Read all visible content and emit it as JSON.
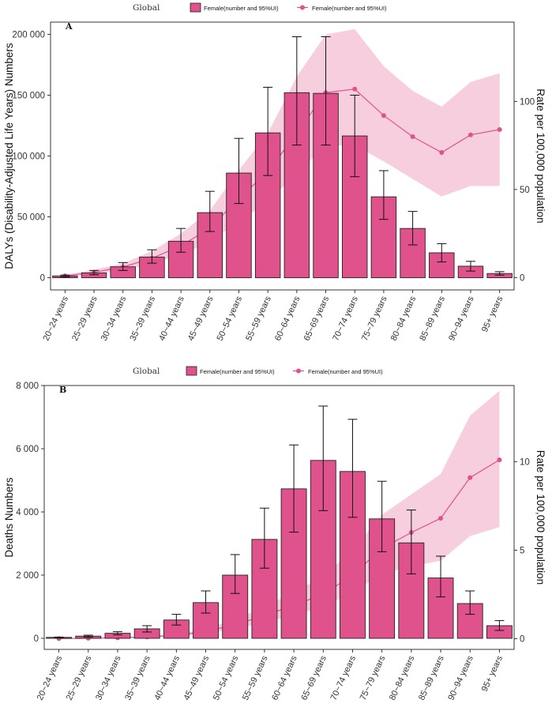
{
  "chart_data": [
    {
      "type": "bar",
      "panel_label": "A",
      "region_label": "Global",
      "legend": {
        "bar": "Female(number and 95%UI)",
        "line": "Female(number and 95%UI)"
      },
      "ylabel": "DALYs (Disability-Adjusted Life Years) Numbers",
      "y2label": "Rate per 100,000 population",
      "ylim": [
        -10000,
        210000
      ],
      "yticks": [
        0,
        50000,
        100000,
        150000,
        200000
      ],
      "ytick_labels": [
        "0",
        "50 000",
        "100 000",
        "150 000",
        "200 000"
      ],
      "y2lim": [
        -7,
        145
      ],
      "y2ticks": [
        0,
        50,
        100
      ],
      "y2tick_labels": [
        "0",
        "50",
        "100"
      ],
      "categories": [
        "20~24 years",
        "25~29 years",
        "30~34 years",
        "35~39 years",
        "40~44 years",
        "45~49 years",
        "50~54 years",
        "55~59 years",
        "60~64 years",
        "65~69 years",
        "70~74 years",
        "75~79 years",
        "80~84 years",
        "85~89 years",
        "90~94 years",
        "95+ years"
      ],
      "values": [
        1500,
        4000,
        9000,
        17000,
        30000,
        53500,
        86000,
        119000,
        152000,
        151500,
        116500,
        66500,
        40500,
        20500,
        9500,
        3500
      ],
      "lower": [
        800,
        2500,
        6000,
        12000,
        21000,
        38000,
        61000,
        84000,
        109000,
        109000,
        83000,
        48000,
        27000,
        13000,
        5500,
        2200
      ],
      "upper": [
        2200,
        6000,
        12500,
        23000,
        40500,
        71000,
        114500,
        156500,
        198000,
        198000,
        150000,
        88000,
        54500,
        28000,
        13500,
        5000
      ],
      "rate": [
        1,
        3,
        6,
        11,
        18,
        28,
        45,
        60,
        82,
        105,
        107,
        92,
        80,
        71,
        81,
        84
      ],
      "rate_lower": [
        0.6,
        2,
        4,
        8,
        13,
        20,
        32,
        43,
        59,
        75,
        75,
        66,
        56,
        46,
        52,
        52
      ],
      "rate_upper": [
        1.5,
        4.5,
        8,
        15,
        25,
        38,
        61,
        82,
        114,
        138,
        141,
        120,
        106,
        97,
        111,
        116
      ],
      "colors": {
        "bar": "#E0528C",
        "line": "#E0528C",
        "band": "#F4C6D8"
      }
    },
    {
      "type": "bar",
      "panel_label": "B",
      "region_label": "Global",
      "legend": {
        "bar": "Female(number and 95%UI)",
        "line": "Female(number and 95%UI)"
      },
      "ylabel": "Deaths Numbers",
      "y2label": "Rate per 100,000 population",
      "ylim": [
        -350,
        8000
      ],
      "yticks": [
        0,
        2000,
        4000,
        6000,
        8000
      ],
      "ytick_labels": [
        "0",
        "2 000",
        "4 000",
        "6 000",
        "8 000"
      ],
      "y2lim": [
        -0.6,
        14.3
      ],
      "y2ticks": [
        0,
        5,
        10
      ],
      "y2tick_labels": [
        "0",
        "5",
        "10"
      ],
      "categories": [
        "20~24 years",
        "25~29 years",
        "30~34 years",
        "35~39 years",
        "40~44 years",
        "45~49 years",
        "50~54 years",
        "55~59 years",
        "60~64 years",
        "65~69 years",
        "70~74 years",
        "75~79 years",
        "80~84 years",
        "85~89 years",
        "90~94 years",
        "95+ years"
      ],
      "values": [
        30,
        70,
        160,
        300,
        580,
        1130,
        2000,
        3130,
        4730,
        5630,
        5280,
        3780,
        3020,
        1910,
        1100,
        400
      ],
      "lower": [
        20,
        40,
        110,
        200,
        420,
        800,
        1420,
        2220,
        3360,
        4040,
        3830,
        2740,
        2040,
        1310,
        760,
        250
      ],
      "upper": [
        40,
        100,
        210,
        400,
        760,
        1500,
        2650,
        4120,
        6120,
        7350,
        6930,
        4970,
        4060,
        2600,
        1500,
        560
      ],
      "rate": [
        0.01,
        0.03,
        0.05,
        0.1,
        0.2,
        0.4,
        0.8,
        1.3,
        1.9,
        2.5,
        3.6,
        5.1,
        6.0,
        6.8,
        9.1,
        10.1
      ],
      "rate_lower": [
        0.006,
        0.02,
        0.03,
        0.07,
        0.14,
        0.28,
        0.56,
        0.9,
        1.35,
        1.8,
        2.6,
        3.65,
        4.1,
        4.4,
        5.8,
        6.3
      ],
      "rate_upper": [
        0.015,
        0.04,
        0.07,
        0.14,
        0.28,
        0.56,
        1.1,
        1.8,
        2.65,
        3.5,
        5.05,
        7.0,
        8.15,
        9.3,
        12.6,
        14.0
      ],
      "colors": {
        "bar": "#E0528C",
        "line": "#E0528C",
        "band": "#F4C6D8"
      }
    }
  ]
}
